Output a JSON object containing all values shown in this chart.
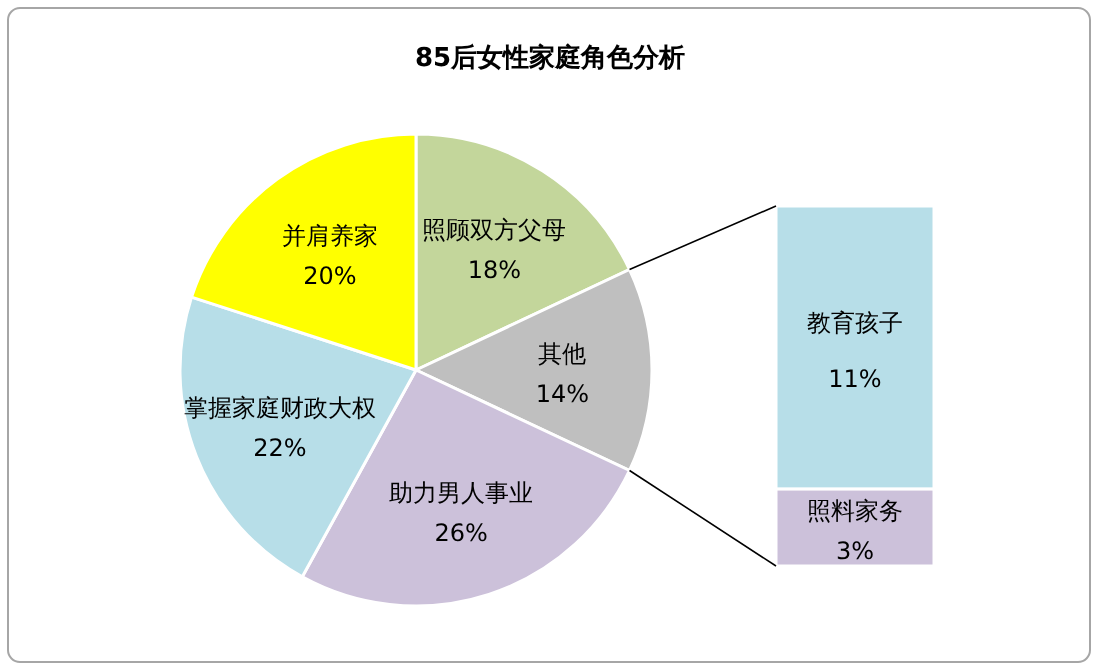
{
  "chart_data": [
    {
      "type": "pie",
      "title": "85后女性家庭角色分析",
      "categories": [
        "照顾双方父母",
        "其他",
        "助力男人事业",
        "掌握家庭财政大权",
        "并肩养家"
      ],
      "values": [
        18,
        14,
        26,
        22,
        20
      ],
      "colors": [
        "#c3d69b",
        "#bfbfbf",
        "#ccc1da",
        "#b7dee8",
        "#ffff00"
      ],
      "value_labels": [
        "18%",
        "14%",
        "26%",
        "22%",
        "20%"
      ]
    },
    {
      "type": "bar",
      "stacked": true,
      "categories": [
        null
      ],
      "series": [
        {
          "name": "照料家务",
          "color": "#ccc1da",
          "values": [
            3
          ],
          "value_labels": [
            "3%"
          ]
        },
        {
          "name": "教育孩子",
          "color": "#b7dee8",
          "values": [
            11
          ],
          "value_labels": [
            "11%"
          ]
        }
      ]
    }
  ]
}
